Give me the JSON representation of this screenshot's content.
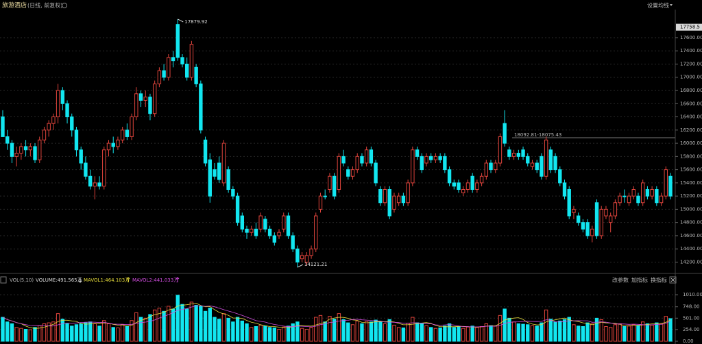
{
  "chart_data": {
    "type": "candlestick",
    "title": "旅游酒店",
    "subtitle": "(日线, 前复权)",
    "ma_button": "设置均线",
    "cursor_price": 17758.5,
    "range_label": "18092.81-18075.43",
    "up_color": "#e0443c",
    "down_color": "#12e6f0",
    "grid": true,
    "ylim": [
      14070,
      18025
    ],
    "yticks": [
      {
        "value": 14200,
        "label": "14200.00"
      },
      {
        "value": 14400,
        "label": "14400.00"
      },
      {
        "value": 14600,
        "label": "14600.00"
      },
      {
        "value": 14800,
        "label": "14800.00"
      },
      {
        "value": 15000,
        "label": "15000.00"
      },
      {
        "value": 15200,
        "label": "15200.00"
      },
      {
        "value": 15400,
        "label": "15400.00"
      },
      {
        "value": 15600,
        "label": "15600.00"
      },
      {
        "value": 15800,
        "label": "15800.00"
      },
      {
        "value": 16000,
        "label": "16000.00"
      },
      {
        "value": 16200,
        "label": "16200.00"
      },
      {
        "value": 16400,
        "label": "16400.00"
      },
      {
        "value": 16600,
        "label": "16600.00"
      },
      {
        "value": 16800,
        "label": "16800.00"
      },
      {
        "value": 17000,
        "label": "17000.00"
      },
      {
        "value": 17200,
        "label": "17200.00"
      },
      {
        "value": 17400,
        "label": "17400.00"
      },
      {
        "value": 17600,
        "label": "17600.00"
      }
    ],
    "open": [
      16400,
      16100,
      16000,
      15800,
      15850,
      15950,
      15900,
      15950,
      15750,
      16050,
      16200,
      16300,
      16400,
      16800,
      16600,
      16400,
      16200,
      15900,
      15700,
      15500,
      15350,
      15400,
      15350,
      15900,
      16000,
      15950,
      16050,
      16200,
      16100,
      16400,
      16750,
      16650,
      16700,
      16450,
      16900,
      17100,
      17000,
      17300,
      17800,
      17300,
      17200,
      17000,
      17150,
      16900,
      16050,
      15750,
      15600,
      15700,
      15400,
      15600,
      15300,
      15200,
      14900,
      14700,
      14650,
      14700,
      14700,
      14850,
      14700,
      14600,
      14600,
      14700,
      14900,
      14600,
      14400,
      14250,
      14200,
      14300,
      14400,
      15000,
      15200,
      15300,
      15500,
      15300,
      15800,
      15600,
      15500,
      15600,
      15800,
      15700,
      15900,
      15700,
      15300,
      15100,
      15300,
      15000,
      15100,
      15200,
      15100,
      15400,
      15900,
      15800,
      15700,
      15800,
      15750,
      15800,
      15800,
      15600,
      15400,
      15400,
      15250,
      15300,
      15500,
      15300,
      15400,
      15500,
      15700,
      15600,
      15700,
      16300,
      15900,
      15800,
      15850,
      15900,
      15800,
      15650,
      15700,
      15800,
      15500,
      15900,
      15800,
      15600,
      15400,
      15300,
      14950,
      14900,
      14800,
      14800,
      14600,
      15100,
      14600,
      14900,
      14800,
      14900,
      15100,
      15200,
      15100,
      15200,
      15200,
      15100,
      15300,
      15200,
      15300,
      15100,
      15200,
      15500
    ],
    "high": [
      16500,
      16200,
      16050,
      15950,
      16000,
      16050,
      16000,
      16000,
      16100,
      16250,
      16350,
      16450,
      16900,
      16850,
      16650,
      16450,
      16250,
      15950,
      15800,
      15600,
      15500,
      15500,
      15950,
      16050,
      16100,
      16100,
      16250,
      16300,
      16450,
      16850,
      16800,
      16800,
      16750,
      16950,
      17150,
      17200,
      17350,
      17400,
      17879.92,
      17350,
      17300,
      17550,
      17200,
      16950,
      16100,
      15850,
      15700,
      15800,
      16050,
      15650,
      15350,
      15250,
      14950,
      14750,
      14750,
      14800,
      14950,
      14900,
      14750,
      14650,
      14700,
      14950,
      14950,
      14650,
      14450,
      14350,
      14350,
      14450,
      14950,
      15250,
      15300,
      15550,
      15550,
      15850,
      15900,
      15650,
      15650,
      15850,
      15850,
      15950,
      15950,
      15750,
      15350,
      15350,
      15350,
      15250,
      15250,
      15250,
      15450,
      15950,
      15950,
      15850,
      15850,
      15850,
      15850,
      15850,
      15850,
      15650,
      15450,
      15450,
      15350,
      15450,
      15550,
      15450,
      15550,
      15750,
      15750,
      15750,
      16150,
      16500,
      15950,
      15900,
      15900,
      15950,
      15850,
      15750,
      15750,
      15850,
      16100,
      15950,
      15850,
      15650,
      15450,
      15350,
      15050,
      14950,
      14850,
      14850,
      14750,
      15150,
      15050,
      15050,
      14950,
      15150,
      15250,
      15300,
      15250,
      15350,
      15250,
      15450,
      15350,
      15350,
      15350,
      15250,
      15650,
      15550
    ],
    "low": [
      16100,
      15900,
      15700,
      15650,
      15750,
      15800,
      15800,
      15700,
      15700,
      16000,
      16100,
      16200,
      16300,
      16500,
      16300,
      16100,
      15800,
      15600,
      15450,
      15300,
      15150,
      15300,
      15300,
      15800,
      15850,
      15900,
      16000,
      16050,
      16050,
      16350,
      16550,
      16550,
      16350,
      16400,
      16850,
      16950,
      16950,
      17150,
      17250,
      17150,
      16950,
      16950,
      16850,
      16150,
      15650,
      15100,
      15450,
      15400,
      15350,
      15250,
      15150,
      14750,
      14650,
      14550,
      14600,
      14550,
      14650,
      14650,
      14550,
      14450,
      14550,
      14650,
      14550,
      14350,
      14121.21,
      14200,
      14150,
      14250,
      14350,
      14950,
      15150,
      15250,
      15150,
      15250,
      15650,
      15450,
      15450,
      15550,
      15650,
      15650,
      15650,
      15350,
      15050,
      15050,
      14850,
      14950,
      15050,
      15050,
      15050,
      15350,
      15750,
      15550,
      15650,
      15700,
      15700,
      15700,
      15550,
      15350,
      15300,
      15250,
      15200,
      15250,
      15250,
      15250,
      15350,
      15450,
      15550,
      15550,
      15650,
      15950,
      15750,
      15750,
      15750,
      15750,
      15650,
      15600,
      15550,
      15450,
      15450,
      15550,
      15550,
      15350,
      15150,
      14850,
      14850,
      14750,
      14650,
      14550,
      14500,
      14550,
      14550,
      14850,
      14650,
      14850,
      15050,
      15100,
      15050,
      15150,
      15050,
      15050,
      15150,
      15150,
      15050,
      15050,
      15150,
      15150
    ],
    "close": [
      16100,
      16000,
      15800,
      15850,
      15950,
      15900,
      15950,
      15750,
      16050,
      16200,
      16300,
      16400,
      16800,
      16600,
      16400,
      16200,
      15900,
      15700,
      15500,
      15350,
      15400,
      15350,
      15900,
      16000,
      15950,
      16050,
      16200,
      16100,
      16400,
      16750,
      16650,
      16700,
      16450,
      16900,
      17100,
      17000,
      17300,
      17250,
      17300,
      17200,
      17000,
      17500,
      16900,
      16200,
      15700,
      15200,
      15500,
      15450,
      16000,
      15300,
      15200,
      14800,
      14700,
      14650,
      14700,
      14600,
      14900,
      14700,
      14600,
      14500,
      14650,
      14900,
      14600,
      14400,
      14200,
      14300,
      14300,
      14400,
      14900,
      15200,
      15200,
      15500,
      15200,
      15800,
      15700,
      15500,
      15600,
      15800,
      15700,
      15900,
      15700,
      15400,
      15100,
      15300,
      14900,
      15200,
      15200,
      15100,
      15400,
      15900,
      15800,
      15600,
      15800,
      15750,
      15800,
      15750,
      15600,
      15400,
      15350,
      15300,
      15300,
      15400,
      15300,
      15400,
      15500,
      15700,
      15600,
      15700,
      16100,
      16000,
      15800,
      15850,
      15800,
      15800,
      15700,
      15700,
      15600,
      15500,
      16050,
      15600,
      15600,
      15400,
      15200,
      14900,
      15000,
      14800,
      14700,
      14600,
      14700,
      14600,
      15000,
      15000,
      14900,
      15100,
      15200,
      15200,
      15200,
      15300,
      15100,
      15400,
      15200,
      15300,
      15100,
      15200,
      15600,
      15200
    ],
    "indicator_name": "VOL(5,10)",
    "volume_label": "VOLUME:491.565万",
    "mavol1_label": "MAVOL1:464.103万",
    "mavol2_label": "MAVOL2:441.033万",
    "buttons": [
      "改参数",
      "加指标",
      "换指标"
    ],
    "vol_ylim": [
      0,
      1160
    ],
    "vol_yticks": [
      {
        "value": 0,
        "label": "0.00"
      },
      {
        "value": 254,
        "label": "254.00"
      },
      {
        "value": 501,
        "label": "501.00"
      },
      {
        "value": 748,
        "label": "748.00"
      },
      {
        "value": 1010,
        "label": "1010.00"
      }
    ],
    "volume": [
      520,
      420,
      380,
      300,
      280,
      260,
      250,
      300,
      340,
      380,
      400,
      420,
      600,
      480,
      380,
      330,
      360,
      380,
      400,
      420,
      380,
      330,
      450,
      380,
      300,
      290,
      360,
      320,
      450,
      620,
      520,
      500,
      580,
      680,
      720,
      650,
      760,
      700,
      1000,
      800,
      700,
      850,
      780,
      760,
      650,
      720,
      520,
      480,
      600,
      500,
      420,
      520,
      440,
      380,
      300,
      320,
      350,
      330,
      300,
      290,
      260,
      310,
      330,
      380,
      420,
      280,
      260,
      300,
      520,
      560,
      420,
      540,
      480,
      600,
      470,
      400,
      360,
      440,
      380,
      430,
      420,
      460,
      430,
      380,
      470,
      350,
      300,
      290,
      390,
      520,
      400,
      380,
      340,
      300,
      280,
      290,
      330,
      380,
      300,
      320,
      280,
      310,
      330,
      300,
      320,
      380,
      340,
      330,
      560,
      700,
      500,
      420,
      380,
      370,
      360,
      340,
      330,
      400,
      680,
      480,
      420,
      440,
      470,
      520,
      360,
      330,
      320,
      400,
      380,
      500,
      470,
      320,
      300,
      360,
      380,
      320,
      330,
      360,
      340,
      420,
      380,
      350,
      400,
      380,
      540,
      491.565
    ],
    "ma_series": [
      {
        "name": "MAVOL1",
        "color": "#e6dc3c",
        "values": [
          520,
          470,
          440,
          405,
          380,
          328,
          294,
          278,
          286,
          306,
          334,
          368,
          428,
          456,
          456,
          442,
          430,
          386,
          370,
          378,
          388,
          382,
          396,
          392,
          368,
          350,
          356,
          330,
          344,
          408,
          454,
          482,
          534,
          580,
          600,
          626,
          678,
          702,
          766,
          782,
          792,
          810,
          826,
          778,
          748,
          752,
          686,
          626,
          594,
          564,
          504,
          504,
          496,
          452,
          412,
          392,
          358,
          336,
          320,
          318,
          306,
          298,
          298,
          314,
          340,
          344,
          334,
          328,
          356,
          384,
          412,
          480,
          504,
          520,
          518,
          498,
          464,
          454,
          410,
          402,
          406,
          426,
          424,
          424,
          432,
          418,
          386,
          358,
          360,
          370,
          380,
          396,
          406,
          388,
          344,
          318,
          316,
          316,
          316,
          322,
          322,
          318,
          308,
          308,
          312,
          328,
          334,
          334,
          386,
          462,
          486,
          502,
          512,
          474,
          406,
          374,
          356,
          360,
          422,
          446,
          466,
          488,
          502,
          466,
          442,
          428,
          400,
          386,
          358,
          386,
          414,
          398,
          394,
          390,
          366,
          336,
          338,
          350,
          346,
          354,
          366,
          378,
          378,
          386,
          410,
          464.103
        ]
      },
      {
        "name": "MAVOL2",
        "color": "#d24ee0",
        "values": [
          520,
          470,
          440,
          405,
          380,
          360,
          344,
          339,
          339,
          350,
          331,
          331,
          357,
          381,
          395,
          385,
          399,
          407,
          413,
          417,
          415,
          406,
          413,
          389,
          373,
          369,
          369,
          363,
          368,
          388,
          405,
          416,
          432,
          462,
          504,
          540,
          578,
          618,
          673,
          691,
          709,
          744,
          764,
          772,
          757,
          767,
          748,
          718,
          686,
          656,
          628,
          595,
          561,
          523,
          488,
          448,
          431,
          416,
          386,
          365,
          349,
          328,
          317,
          317,
          329,
          325,
          320,
          313,
          327,
          362,
          378,
          407,
          416,
          438,
          451,
          455,
          472,
          479,
          465,
          460,
          452,
          444,
          439,
          417,
          417,
          412,
          406,
          391,
          392,
          401,
          399,
          391,
          382,
          379,
          357,
          349,
          356,
          361,
          352,
          333,
          319,
          317,
          312,
          312,
          317,
          325,
          328,
          326,
          347,
          387,
          410,
          418,
          423,
          430,
          434,
          430,
          429,
          431,
          467,
          460,
          420,
          422,
          429,
          444,
          444,
          447,
          444,
          444,
          412,
          414,
          421,
          413,
          397,
          374,
          376,
          375,
          368,
          372,
          368,
          360,
          351,
          358,
          364,
          366,
          388,
          441.033
        ]
      }
    ]
  }
}
